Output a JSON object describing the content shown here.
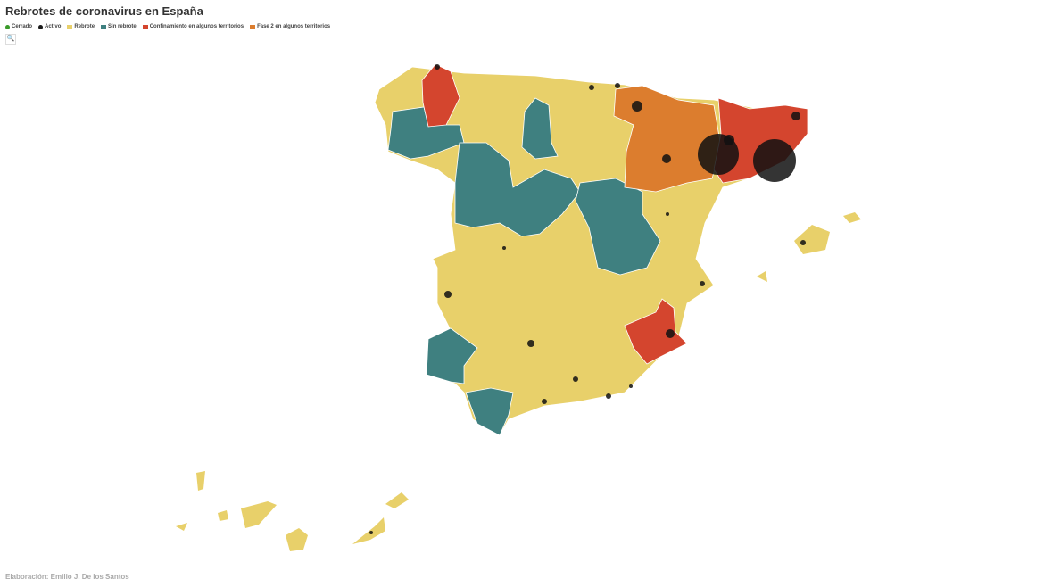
{
  "header": {
    "title": "Rebrotes de coronavirus en España"
  },
  "legend": [
    {
      "label": "Cerrado",
      "color": "#3a9a2a",
      "shape": "circle"
    },
    {
      "label": "Activo",
      "color": "#1a1a1a",
      "shape": "circle"
    },
    {
      "label": "Rebrote",
      "color": "#e8d06a",
      "shape": "square"
    },
    {
      "label": "Sin rebrote",
      "color": "#3f8080",
      "shape": "square"
    },
    {
      "label": "Confinamiento en algunos territorios",
      "color": "#d4452e",
      "shape": "square"
    },
    {
      "label": "Fase 2 en algunos territorios",
      "color": "#dc7d2e",
      "shape": "square"
    }
  ],
  "footer": {
    "credit": "Elaboración: Emilio J. De los Santos"
  }
}
